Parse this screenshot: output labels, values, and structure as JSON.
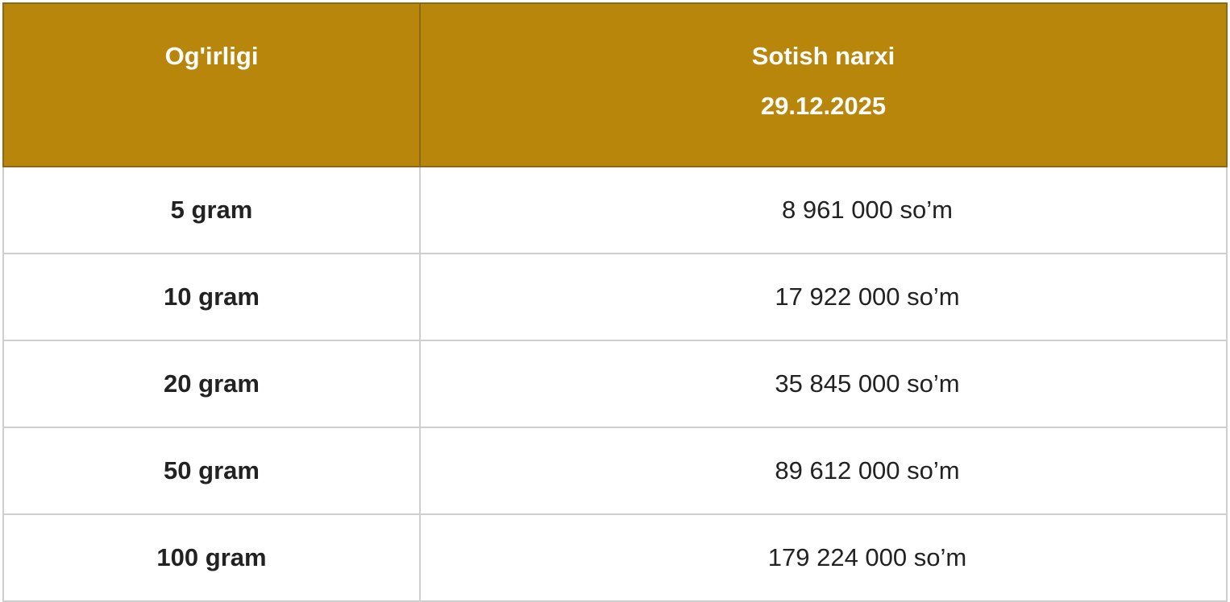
{
  "header": {
    "weight": "Og'irligi",
    "price": "Sotish narxi",
    "date": "29.12.2025",
    "color": "#b8860b"
  },
  "rows": [
    {
      "weight": "5 gram",
      "price": "8 961 000 so’m"
    },
    {
      "weight": "10 gram",
      "price": "17 922 000 so’m"
    },
    {
      "weight": "20 gram",
      "price": "35 845 000 so’m"
    },
    {
      "weight": "50 gram",
      "price": "89 612 000 so’m"
    },
    {
      "weight": "100 gram",
      "price": "179 224 000 so’m"
    }
  ]
}
